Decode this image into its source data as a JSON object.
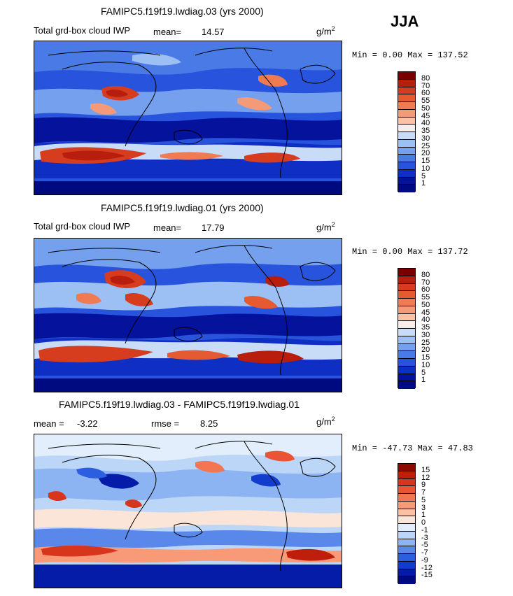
{
  "season": "JJA",
  "panels": [
    {
      "title": "FAMIPC5.f19f19.lwdiag.03 (yrs 2000)",
      "variable": "Total grd-box cloud IWP",
      "stat_label": "mean=",
      "stat_value": "14.57",
      "units_main": "g/m",
      "units_sup": "2",
      "min_label": "Min =",
      "min_value": "0.00",
      "max_label": "Max =",
      "max_value": "137.52",
      "levels": [
        "80",
        "70",
        "60",
        "55",
        "50",
        "45",
        "40",
        "35",
        "30",
        "25",
        "20",
        "15",
        "10",
        "5",
        "1"
      ],
      "colors": [
        "#7a0000",
        "#b81e0e",
        "#d63c1e",
        "#e65a32",
        "#f07a52",
        "#f59a78",
        "#fbc2a8",
        "#f6eeea",
        "#c8dcf8",
        "#9dc0f4",
        "#74a0ee",
        "#4a7ae6",
        "#2853dc",
        "#0f2fc4",
        "#04129c",
        "#000a80"
      ]
    },
    {
      "title": "FAMIPC5.f19f19.lwdiag.01 (yrs 2000)",
      "variable": "Total grd-box cloud IWP",
      "stat_label": "mean=",
      "stat_value": "17.79",
      "units_main": "g/m",
      "units_sup": "2",
      "min_label": "Min =",
      "min_value": "0.00",
      "max_label": "Max =",
      "max_value": "137.72",
      "levels": [
        "80",
        "70",
        "60",
        "55",
        "50",
        "45",
        "40",
        "35",
        "30",
        "25",
        "20",
        "15",
        "10",
        "5",
        "1"
      ],
      "colors": [
        "#7a0000",
        "#b81e0e",
        "#d63c1e",
        "#e65a32",
        "#f07a52",
        "#f59a78",
        "#fbc2a8",
        "#f6eeea",
        "#c8dcf8",
        "#9dc0f4",
        "#74a0ee",
        "#4a7ae6",
        "#2853dc",
        "#0f2fc4",
        "#04129c",
        "#000a80"
      ]
    },
    {
      "title": "FAMIPC5.f19f19.lwdiag.03 - FAMIPC5.f19f19.lwdiag.01",
      "mean_label": "mean =",
      "mean_value": "-3.22",
      "rmse_label": "rmse =",
      "rmse_value": "8.25",
      "units_main": "g/m",
      "units_sup": "2",
      "min_label": "Min =",
      "min_value": "-47.73",
      "max_label": "Max =",
      "max_value": "47.83",
      "levels": [
        "15",
        "12",
        "9",
        "7",
        "5",
        "3",
        "1",
        "0",
        "-1",
        "-3",
        "-5",
        "-7",
        "-9",
        "-12",
        "-15"
      ],
      "colors": [
        "#8a0a00",
        "#c01e0c",
        "#d8361c",
        "#e85434",
        "#f27652",
        "#f89a78",
        "#fcc0a4",
        "#fbe4d8",
        "#e2eefc",
        "#bcd6f8",
        "#8cb4f2",
        "#5a88ea",
        "#2e5ee0",
        "#123ccc",
        "#041ca8",
        "#000a80"
      ]
    }
  ],
  "chart_data": {
    "type": "heatmap",
    "season": "JJA",
    "units": "g/m^2",
    "maps": [
      {
        "title": "FAMIPC5.f19f19.lwdiag.03 (yrs 2000)",
        "variable": "Total grd-box cloud IWP",
        "mean": 14.57,
        "min": 0.0,
        "max": 137.52,
        "contour_levels": [
          1,
          5,
          10,
          15,
          20,
          25,
          30,
          35,
          40,
          45,
          50,
          55,
          60,
          70,
          80
        ]
      },
      {
        "title": "FAMIPC5.f19f19.lwdiag.01 (yrs 2000)",
        "variable": "Total grd-box cloud IWP",
        "mean": 17.79,
        "min": 0.0,
        "max": 137.72,
        "contour_levels": [
          1,
          5,
          10,
          15,
          20,
          25,
          30,
          35,
          40,
          45,
          50,
          55,
          60,
          70,
          80
        ]
      },
      {
        "title": "FAMIPC5.f19f19.lwdiag.03 - FAMIPC5.f19f19.lwdiag.01",
        "mean": -3.22,
        "rmse": 8.25,
        "min": -47.73,
        "max": 47.83,
        "contour_levels": [
          -15,
          -12,
          -9,
          -7,
          -5,
          -3,
          -1,
          0,
          1,
          3,
          5,
          7,
          9,
          12,
          15
        ]
      }
    ]
  }
}
